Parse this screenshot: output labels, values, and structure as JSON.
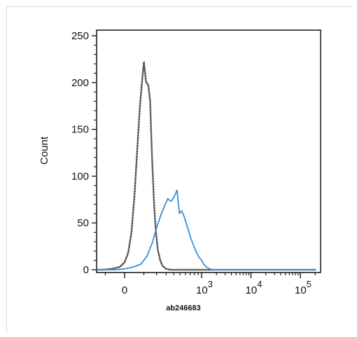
{
  "chart_data": {
    "type": "line",
    "title": "",
    "xlabel": "ab246683",
    "ylabel": "Count",
    "x_scale": "biexponential",
    "xlim": [
      -300,
      200000
    ],
    "ylim": [
      0,
      250
    ],
    "y_ticks": [
      0,
      50,
      100,
      150,
      200,
      250
    ],
    "x_ticks": [
      {
        "value": 0,
        "label": "0"
      },
      {
        "value": 1000,
        "base": "10",
        "exp": "3"
      },
      {
        "value": 10000,
        "base": "10",
        "exp": "4"
      },
      {
        "value": 100000,
        "base": "10",
        "exp": "5"
      }
    ],
    "grid": false,
    "series": [
      {
        "style": "dotted",
        "color": "#555555",
        "points": [
          [
            -300,
            0
          ],
          [
            -120,
            0
          ],
          [
            -60,
            1
          ],
          [
            -20,
            3
          ],
          [
            0,
            8
          ],
          [
            15,
            18
          ],
          [
            30,
            40
          ],
          [
            45,
            80
          ],
          [
            60,
            130
          ],
          [
            75,
            175
          ],
          [
            90,
            205
          ],
          [
            100,
            222
          ],
          [
            115,
            200
          ],
          [
            130,
            198
          ],
          [
            145,
            180
          ],
          [
            160,
            120
          ],
          [
            175,
            75
          ],
          [
            190,
            45
          ],
          [
            210,
            22
          ],
          [
            235,
            10
          ],
          [
            260,
            4
          ],
          [
            300,
            1
          ],
          [
            350,
            0
          ],
          [
            500,
            0
          ],
          [
            200000,
            0
          ]
        ]
      },
      {
        "style": "solid",
        "color": "#3a8fd6",
        "points": [
          [
            -300,
            0
          ],
          [
            -40,
            0
          ],
          [
            0,
            1
          ],
          [
            40,
            3
          ],
          [
            80,
            6
          ],
          [
            120,
            14
          ],
          [
            160,
            28
          ],
          [
            200,
            45
          ],
          [
            240,
            58
          ],
          [
            280,
            68
          ],
          [
            320,
            76
          ],
          [
            360,
            73
          ],
          [
            400,
            77
          ],
          [
            450,
            85
          ],
          [
            490,
            60
          ],
          [
            530,
            63
          ],
          [
            580,
            56
          ],
          [
            650,
            44
          ],
          [
            720,
            33
          ],
          [
            790,
            25
          ],
          [
            860,
            18
          ],
          [
            930,
            13
          ],
          [
            1000,
            10
          ],
          [
            1100,
            6
          ],
          [
            1250,
            3
          ],
          [
            1450,
            1
          ],
          [
            1700,
            0
          ],
          [
            5000,
            0
          ],
          [
            200000,
            0
          ]
        ]
      }
    ]
  }
}
